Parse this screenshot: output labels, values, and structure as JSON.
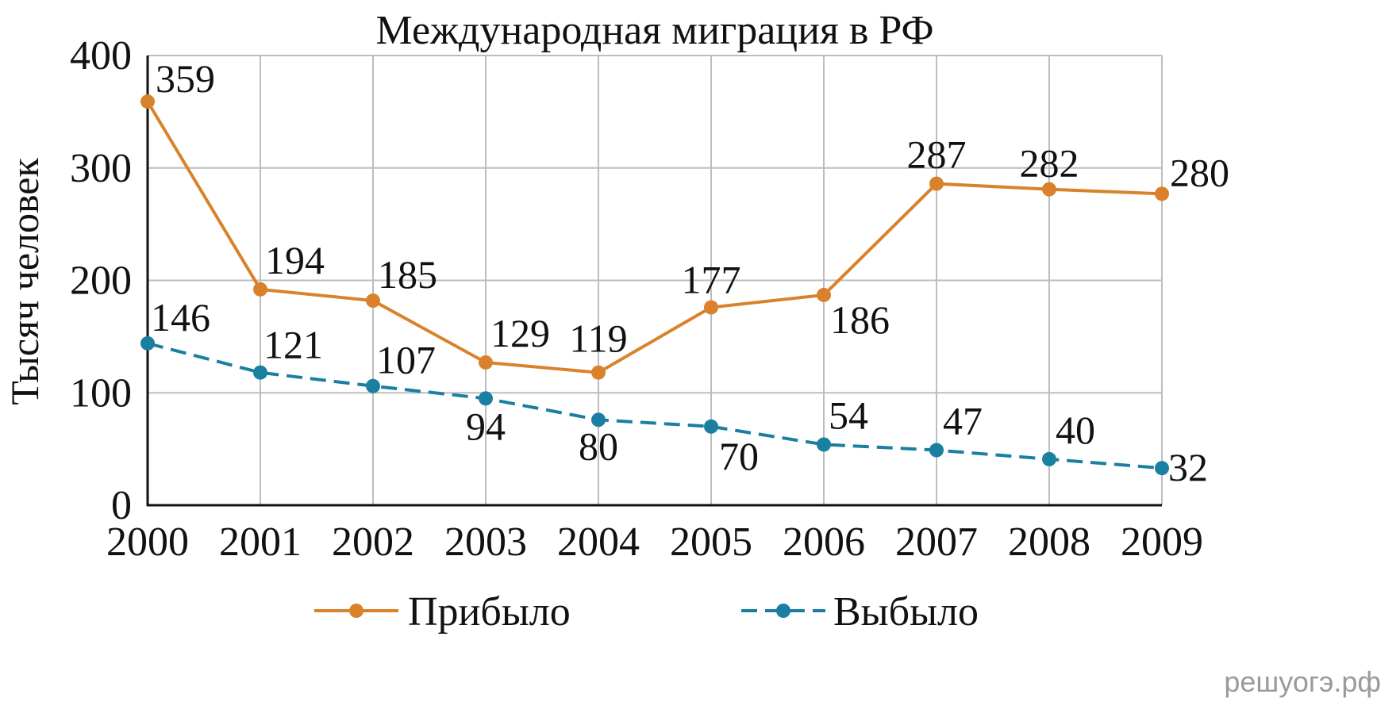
{
  "watermark": "решуогэ.рф",
  "chart_data": {
    "type": "line",
    "title": "Международная миграция в РФ",
    "xlabel": "",
    "ylabel": "Тысяч человек",
    "categories": [
      "2000",
      "2001",
      "2002",
      "2003",
      "2004",
      "2005",
      "2006",
      "2007",
      "2008",
      "2009"
    ],
    "yticks": [
      "0",
      "100",
      "200",
      "300",
      "400"
    ],
    "ylim": [
      0,
      400
    ],
    "grid": true,
    "legend_position": "bottom",
    "series": [
      {
        "name": "Прибыло",
        "values": [
          359,
          194,
          185,
          129,
          119,
          177,
          186,
          287,
          282,
          280
        ],
        "labels": [
          "359",
          "194",
          "185",
          "129",
          "119",
          "177",
          "186",
          "287",
          "282",
          "280"
        ],
        "plotted": [
          359,
          192,
          182,
          127,
          118,
          176,
          187,
          286,
          281,
          277
        ],
        "color": "#d9822b",
        "line_style": "solid"
      },
      {
        "name": "Выбыло",
        "values": [
          146,
          121,
          107,
          94,
          80,
          70,
          54,
          47,
          40,
          32
        ],
        "labels": [
          "146",
          "121",
          "107",
          "94",
          "80",
          "70",
          "54",
          "47",
          "40",
          "32"
        ],
        "plotted": [
          144,
          118,
          106,
          95,
          76,
          70,
          54,
          49,
          41,
          33
        ],
        "color": "#1a7fa0",
        "line_style": "dashed"
      }
    ]
  }
}
